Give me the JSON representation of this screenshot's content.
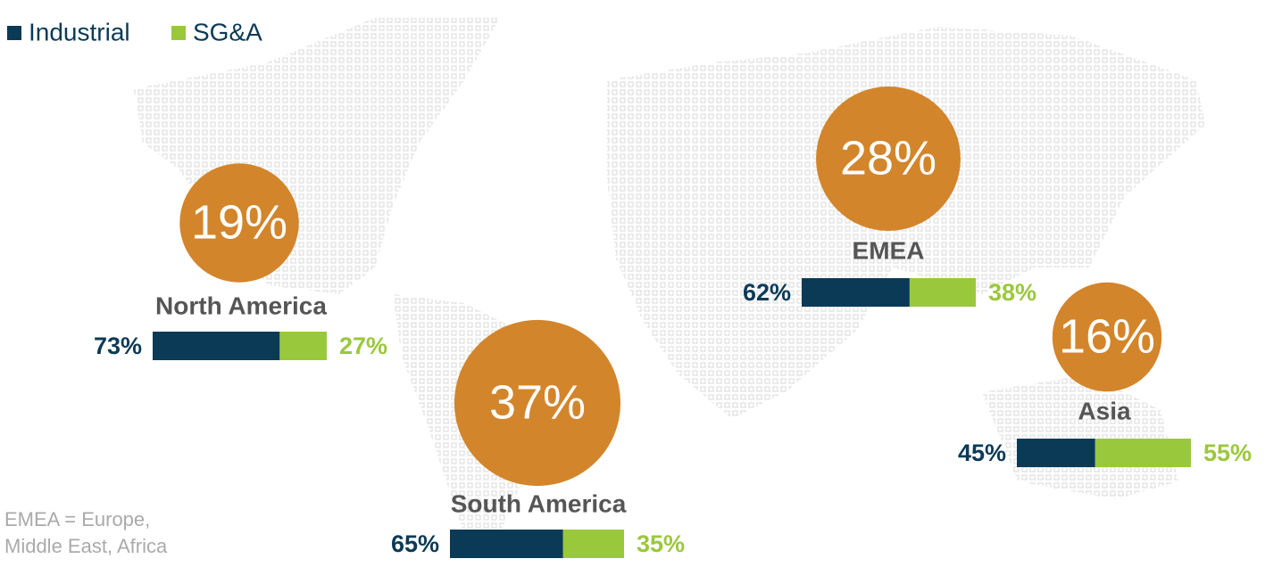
{
  "chart_data": {
    "type": "bubble",
    "categories": [
      "North America",
      "South America",
      "EMEA",
      "Asia"
    ],
    "values": [
      19,
      37,
      28,
      16
    ],
    "value_labels": [
      "19%",
      "37%",
      "28%",
      "16%"
    ],
    "color": "#d3852b",
    "series": [
      {
        "name": "Industrial",
        "color": "#0b3a57",
        "values": [
          73,
          65,
          62,
          45
        ],
        "value_labels": [
          "73%",
          "65%",
          "62%",
          "45%"
        ]
      },
      {
        "name": "SG&A",
        "color": "#9ac83c",
        "values": [
          27,
          35,
          38,
          55
        ],
        "value_labels": [
          "27%",
          "35%",
          "38%",
          "55%"
        ]
      }
    ],
    "note": [
      "EMEA = Europe,",
      "Middle East, Africa"
    ]
  }
}
